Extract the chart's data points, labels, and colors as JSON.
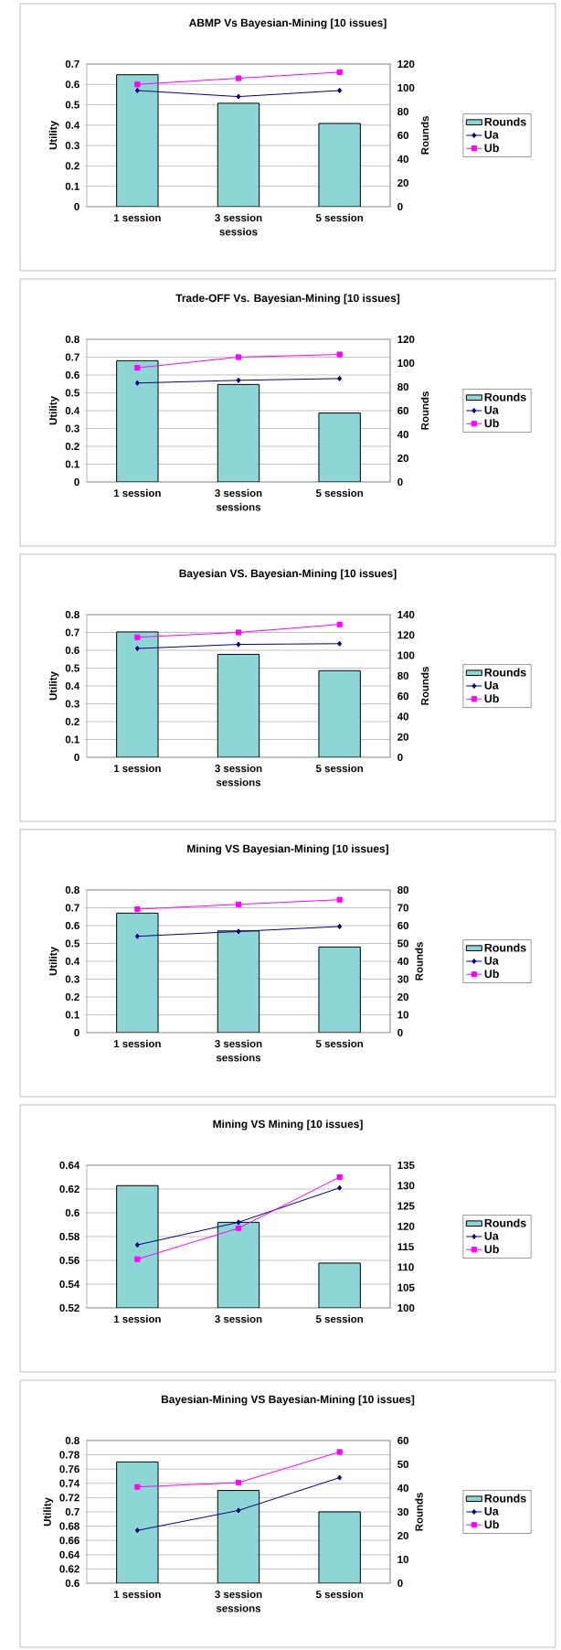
{
  "chart_data": [
    {
      "type": "bar",
      "title": "ABMP  Vs Bayesian-Mining [10 issues]",
      "xlabel": "sessios",
      "ylabel": "Utility",
      "y2label": "Rounds",
      "categories": [
        "1 session",
        "3 session",
        "5 session"
      ],
      "ylim": [
        0,
        0.7
      ],
      "yticks": [
        0,
        0.1,
        0.2,
        0.3,
        0.4,
        0.5,
        0.6,
        0.7
      ],
      "y2lim": [
        0,
        120
      ],
      "y2ticks": [
        0,
        20,
        40,
        60,
        80,
        100,
        120
      ],
      "grid": "y",
      "legend": "right",
      "series": [
        {
          "name": "Rounds",
          "axis": "y2",
          "color": "#8ed6d6",
          "values": [
            111,
            87,
            70
          ]
        },
        {
          "name": "Ua",
          "type": "line",
          "color": "#000080",
          "marker": "diamond",
          "values": [
            0.57,
            0.54,
            0.57
          ]
        },
        {
          "name": "Ub",
          "type": "line",
          "color": "#ff00ff",
          "marker": "square",
          "values": [
            0.6,
            0.63,
            0.66
          ]
        }
      ]
    },
    {
      "type": "bar",
      "title": "Trade-OFF Vs. Bayesian-Mining [10 issues]",
      "xlabel": "sessions",
      "ylabel": "Utility",
      "y2label": "Rounds",
      "categories": [
        "1 session",
        "3 session",
        "5 session"
      ],
      "ylim": [
        0,
        0.8
      ],
      "yticks": [
        0,
        0.1,
        0.2,
        0.3,
        0.4,
        0.5,
        0.6,
        0.7,
        0.8
      ],
      "y2lim": [
        0,
        120
      ],
      "y2ticks": [
        0,
        20,
        40,
        60,
        80,
        100,
        120
      ],
      "grid": "y",
      "legend": "right",
      "series": [
        {
          "name": "Rounds",
          "axis": "y2",
          "color": "#8ed6d6",
          "values": [
            102,
            82,
            58
          ]
        },
        {
          "name": "Ua",
          "type": "line",
          "color": "#000080",
          "marker": "diamond",
          "values": [
            0.555,
            0.57,
            0.58
          ]
        },
        {
          "name": "Ub",
          "type": "line",
          "color": "#ff00ff",
          "marker": "square",
          "values": [
            0.64,
            0.7,
            0.715
          ]
        }
      ]
    },
    {
      "type": "bar",
      "title": "Bayesian VS. Bayesian-Mining [10 issues]",
      "xlabel": "sessions",
      "ylabel": "Utility",
      "y2label": "Rounds",
      "categories": [
        "1 session",
        "3 session",
        "5 session"
      ],
      "ylim": [
        0,
        0.8
      ],
      "yticks": [
        0,
        0.1,
        0.2,
        0.3,
        0.4,
        0.5,
        0.6,
        0.7,
        0.8
      ],
      "y2lim": [
        0,
        140
      ],
      "y2ticks": [
        0,
        20,
        40,
        60,
        80,
        100,
        120,
        140
      ],
      "grid": "y",
      "legend": "right",
      "series": [
        {
          "name": "Rounds",
          "axis": "y2",
          "color": "#8ed6d6",
          "values": [
            123,
            101,
            85
          ]
        },
        {
          "name": "Ua",
          "type": "line",
          "color": "#000080",
          "marker": "diamond",
          "values": [
            0.61,
            0.633,
            0.637
          ]
        },
        {
          "name": "Ub",
          "type": "line",
          "color": "#ff00ff",
          "marker": "square",
          "values": [
            0.673,
            0.7,
            0.745
          ]
        }
      ]
    },
    {
      "type": "bar",
      "title": "Mining VS  Bayesian-Mining [10 issues]",
      "xlabel": "sessions",
      "ylabel": "Utility",
      "y2label": "Rounds",
      "categories": [
        "1 session",
        "3 session",
        "5 session"
      ],
      "ylim": [
        0,
        0.8
      ],
      "yticks": [
        0,
        0.1,
        0.2,
        0.3,
        0.4,
        0.5,
        0.6,
        0.7,
        0.8
      ],
      "y2lim": [
        0,
        80
      ],
      "y2ticks": [
        0,
        10,
        20,
        30,
        40,
        50,
        60,
        70,
        80
      ],
      "grid": "y",
      "legend": "right",
      "series": [
        {
          "name": "Rounds",
          "axis": "y2",
          "color": "#8ed6d6",
          "values": [
            67,
            57,
            48
          ]
        },
        {
          "name": "Ua",
          "type": "line",
          "color": "#000080",
          "marker": "diamond",
          "values": [
            0.54,
            0.567,
            0.595
          ]
        },
        {
          "name": "Ub",
          "type": "line",
          "color": "#ff00ff",
          "marker": "square",
          "values": [
            0.692,
            0.719,
            0.745
          ]
        }
      ]
    },
    {
      "type": "bar",
      "title": "Mining VS  Mining [10 issues]",
      "categories": [
        "1 session",
        "3 session",
        "5 session"
      ],
      "ylim": [
        0.52,
        0.64
      ],
      "yticks": [
        0.52,
        0.54,
        0.56,
        0.58,
        0.6,
        0.62,
        0.64
      ],
      "y2lim": [
        100,
        135
      ],
      "y2ticks": [
        100,
        105,
        110,
        115,
        120,
        125,
        130,
        135
      ],
      "grid": "y",
      "legend": "right",
      "series": [
        {
          "name": "Rounds",
          "axis": "y2",
          "color": "#8ed6d6",
          "values": [
            130,
            121,
            111
          ]
        },
        {
          "name": "Ua",
          "type": "line",
          "color": "#000080",
          "marker": "diamond",
          "values": [
            0.573,
            0.592,
            0.621
          ]
        },
        {
          "name": "Ub",
          "type": "line",
          "color": "#ff00ff",
          "marker": "square",
          "values": [
            0.561,
            0.587,
            0.63
          ]
        }
      ]
    },
    {
      "type": "bar",
      "title": "Bayesian-Mining VS  Bayesian-Mining [10 issues]",
      "xlabel": "sessions",
      "ylabel": "Utility",
      "y2label": "Rounds",
      "categories": [
        "1 session",
        "3 session",
        "5 session"
      ],
      "ylim": [
        0.6,
        0.8
      ],
      "yticks": [
        0.6,
        0.62,
        0.64,
        0.66,
        0.68,
        0.7,
        0.72,
        0.74,
        0.76,
        0.78,
        0.8
      ],
      "y2lim": [
        0,
        60
      ],
      "y2ticks": [
        0,
        10,
        20,
        30,
        40,
        50,
        60
      ],
      "grid": "y",
      "legend": "right",
      "series": [
        {
          "name": "Rounds",
          "axis": "y2",
          "color": "#8ed6d6",
          "values": [
            51,
            39,
            30
          ]
        },
        {
          "name": "Ua",
          "type": "line",
          "color": "#000080",
          "marker": "diamond",
          "values": [
            0.674,
            0.702,
            0.748
          ]
        },
        {
          "name": "Ub",
          "type": "line",
          "color": "#ff00ff",
          "marker": "square",
          "values": [
            0.735,
            0.741,
            0.784
          ]
        }
      ]
    }
  ]
}
